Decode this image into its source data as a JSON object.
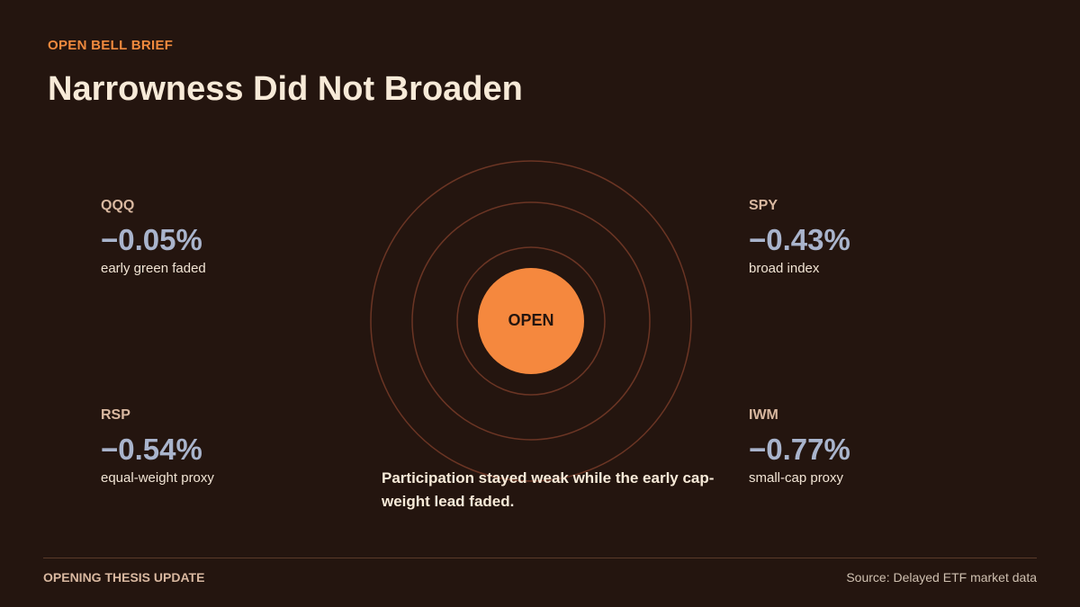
{
  "header": {
    "eyebrow": "OPEN BELL BRIEF",
    "title": "Narrowness Did Not Broaden"
  },
  "tickers": [
    {
      "symbol": "QQQ",
      "change": "−0.05%",
      "note": "early green faded"
    },
    {
      "symbol": "SPY",
      "change": "−0.43%",
      "note": "broad index"
    },
    {
      "symbol": "RSP",
      "change": "−0.54%",
      "note": "equal-weight proxy"
    },
    {
      "symbol": "IWM",
      "change": "−0.77%",
      "note": "small-cap proxy"
    }
  ],
  "center": {
    "label": "OPEN"
  },
  "caption": "Participation stayed weak while the early cap-weight lead faded.",
  "footer": {
    "left": "OPENING THESIS UPDATE",
    "source": "Source: Delayed ETF market data"
  }
}
